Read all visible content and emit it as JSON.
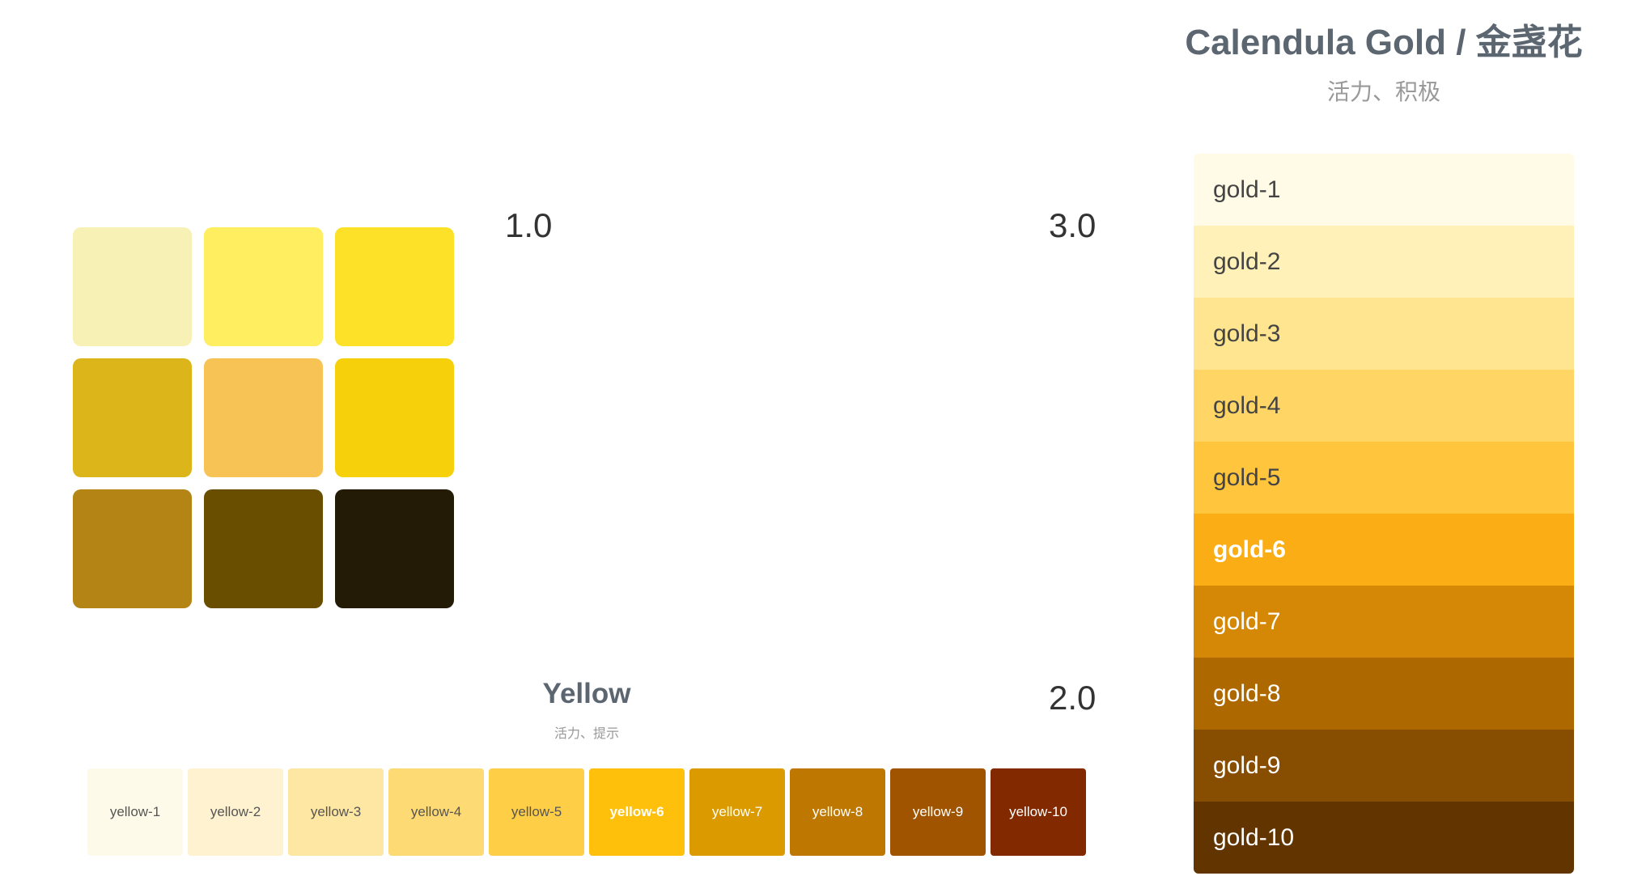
{
  "swatch_grid": [
    {
      "name": "swatch-1",
      "color": "#F8F1B5"
    },
    {
      "name": "swatch-2",
      "color": "#FEEE60"
    },
    {
      "name": "swatch-3",
      "color": "#FDE128"
    },
    {
      "name": "swatch-4",
      "color": "#DBB51A"
    },
    {
      "name": "swatch-5",
      "color": "#F8C355"
    },
    {
      "name": "swatch-6",
      "color": "#F7D00C"
    },
    {
      "name": "swatch-7",
      "color": "#B48515"
    },
    {
      "name": "swatch-8",
      "color": "#694E00"
    },
    {
      "name": "swatch-9",
      "color": "#241B07"
    }
  ],
  "versions": {
    "v1": "1.0",
    "v2": "2.0",
    "v3": "3.0"
  },
  "yellow": {
    "title": "Yellow",
    "subtitle": "活力、提示",
    "swatches": [
      {
        "label": "yellow-1",
        "color": "#FEFAEA",
        "light_text": false,
        "bold": false
      },
      {
        "label": "yellow-2",
        "color": "#FEF2D0",
        "light_text": false,
        "bold": false
      },
      {
        "label": "yellow-3",
        "color": "#FEE6A3",
        "light_text": false,
        "bold": false
      },
      {
        "label": "yellow-4",
        "color": "#FEDA75",
        "light_text": false,
        "bold": false
      },
      {
        "label": "yellow-5",
        "color": "#FECE47",
        "light_text": false,
        "bold": false
      },
      {
        "label": "yellow-6",
        "color": "#FEC00A",
        "light_text": true,
        "bold": true
      },
      {
        "label": "yellow-7",
        "color": "#DB9A00",
        "light_text": true,
        "bold": false
      },
      {
        "label": "yellow-8",
        "color": "#BE7700",
        "light_text": true,
        "bold": false
      },
      {
        "label": "yellow-9",
        "color": "#A05400",
        "light_text": true,
        "bold": false
      },
      {
        "label": "yellow-10",
        "color": "#822900",
        "light_text": true,
        "bold": false
      }
    ]
  },
  "gold": {
    "title": "Calendula Gold / 金盏花",
    "subtitle": "活力、积极",
    "swatches": [
      {
        "label": "gold-1",
        "color": "#FFFBE6",
        "light_text": false,
        "bold": false
      },
      {
        "label": "gold-2",
        "color": "#FFF1B8",
        "light_text": false,
        "bold": false
      },
      {
        "label": "gold-3",
        "color": "#FFE58F",
        "light_text": false,
        "bold": false
      },
      {
        "label": "gold-4",
        "color": "#FFD666",
        "light_text": false,
        "bold": false
      },
      {
        "label": "gold-5",
        "color": "#FFC53D",
        "light_text": false,
        "bold": false
      },
      {
        "label": "gold-6",
        "color": "#FAAD14",
        "light_text": true,
        "bold": true
      },
      {
        "label": "gold-7",
        "color": "#D48806",
        "light_text": true,
        "bold": false
      },
      {
        "label": "gold-8",
        "color": "#AD6800",
        "light_text": true,
        "bold": false
      },
      {
        "label": "gold-9",
        "color": "#874D00",
        "light_text": true,
        "bold": false
      },
      {
        "label": "gold-10",
        "color": "#613400",
        "light_text": true,
        "bold": false
      }
    ]
  }
}
